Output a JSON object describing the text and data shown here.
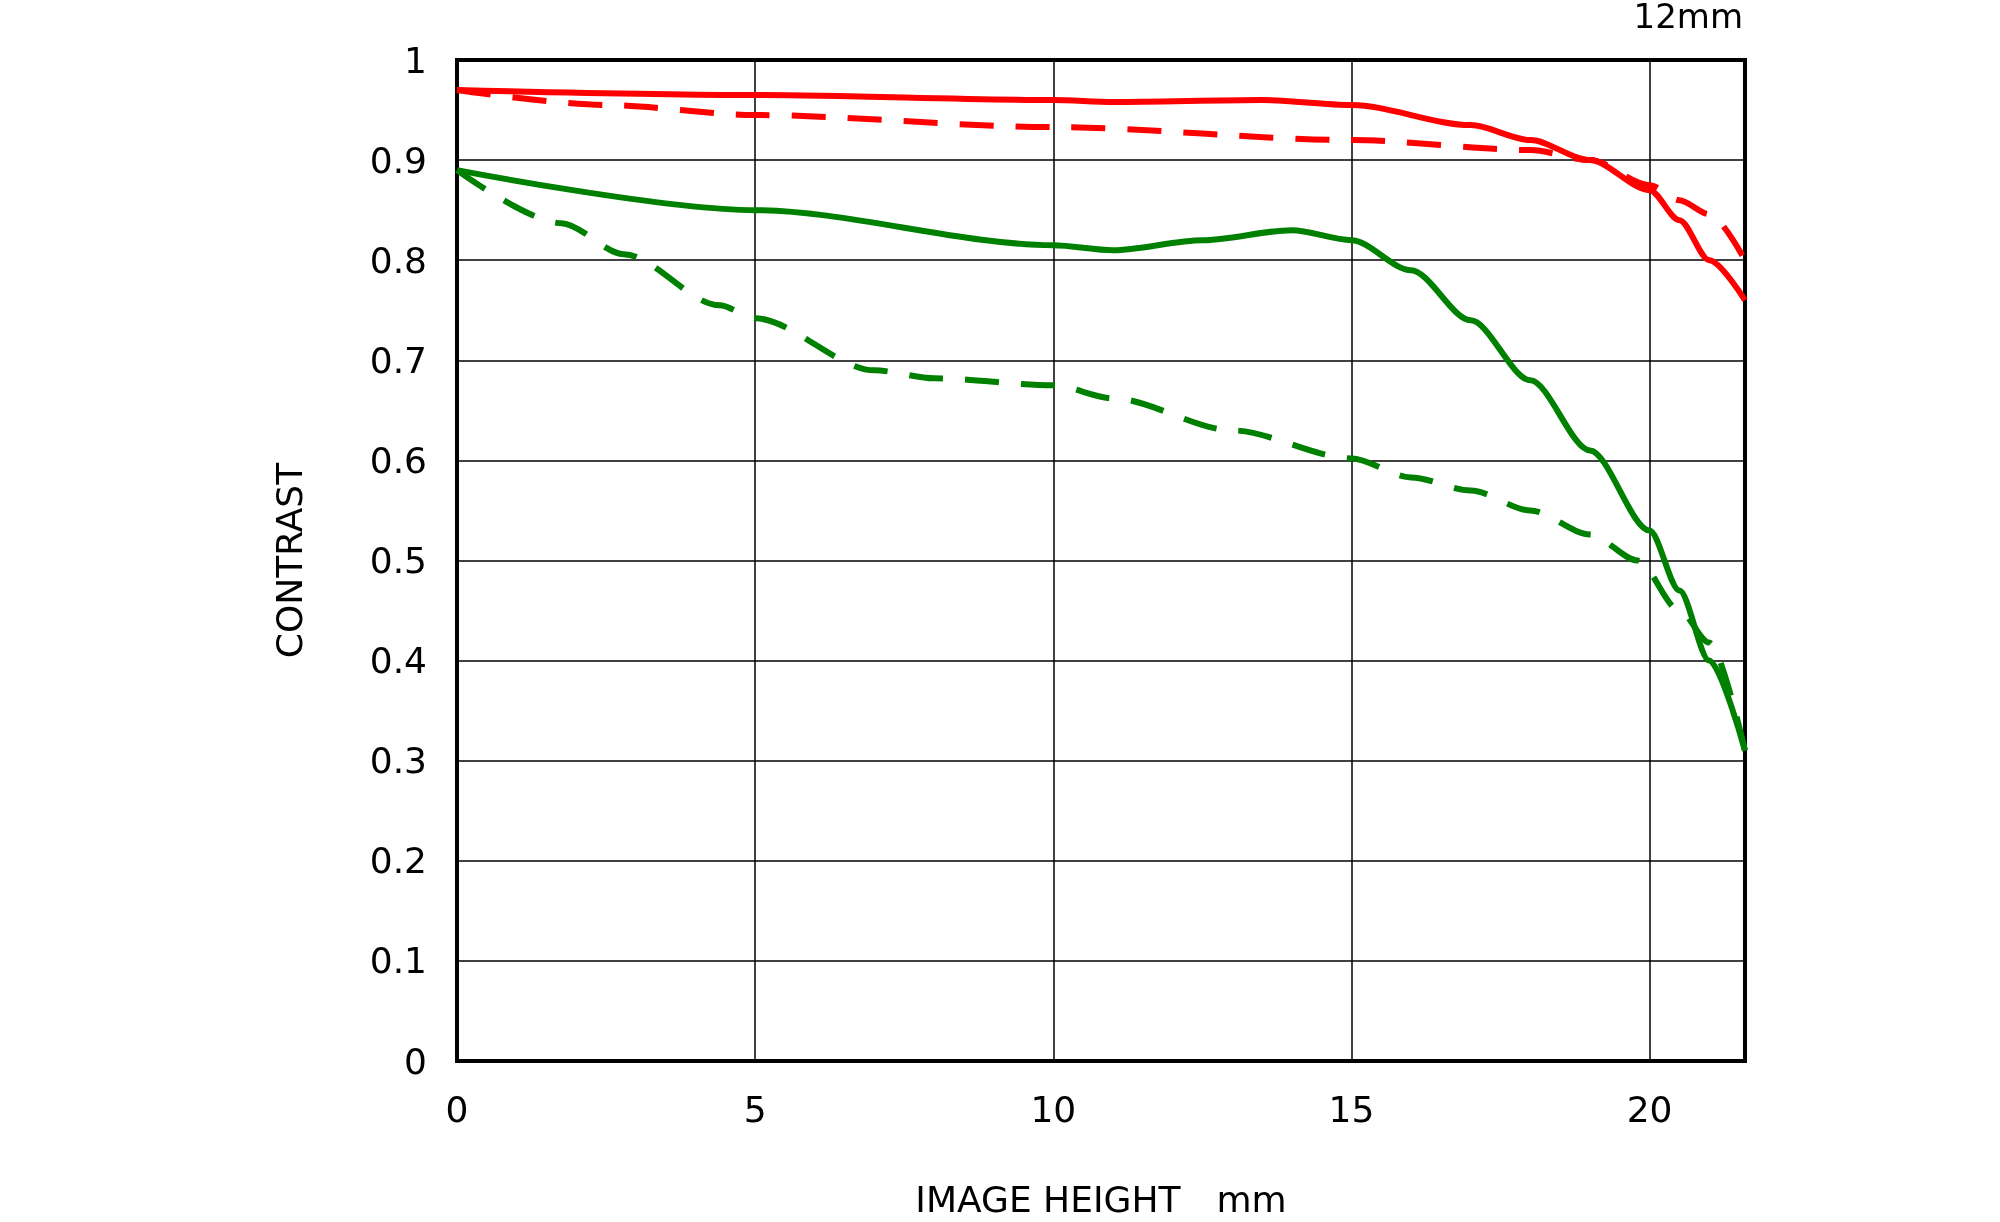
{
  "chart_data": {
    "type": "line",
    "title": "12mm",
    "xlabel": "IMAGE HEIGHT　mm",
    "ylabel": "CONTRAST",
    "xlim": [
      0,
      21.6
    ],
    "xticks": [
      0,
      5,
      10,
      15,
      20
    ],
    "ylim": [
      0,
      1
    ],
    "yticks": [
      0,
      0.1,
      0.2,
      0.3,
      0.4,
      0.5,
      0.6,
      0.7,
      0.8,
      0.9,
      1
    ],
    "grid": true,
    "marker": "none",
    "series": [
      {
        "color": "#ff0000",
        "line_style": "solid",
        "x": [
          0,
          5,
          10,
          11,
          13.5,
          15,
          17,
          18,
          19,
          20,
          20.5,
          21,
          21.6
        ],
        "values": [
          0.97,
          0.965,
          0.96,
          0.958,
          0.96,
          0.955,
          0.935,
          0.92,
          0.9,
          0.87,
          0.84,
          0.8,
          0.76
        ]
      },
      {
        "color": "#ff0000",
        "line_style": "dashed",
        "x": [
          0,
          2.5,
          5,
          10,
          15,
          18,
          19,
          20,
          20.5,
          21,
          21.6
        ],
        "values": [
          0.97,
          0.955,
          0.945,
          0.933,
          0.92,
          0.91,
          0.9,
          0.875,
          0.86,
          0.846,
          0.8
        ]
      },
      {
        "color": "#008000",
        "line_style": "solid",
        "x": [
          0,
          5,
          10,
          11,
          12.5,
          14,
          15,
          16,
          17,
          18,
          19,
          20,
          20.5,
          21,
          21.6
        ],
        "values": [
          0.89,
          0.85,
          0.815,
          0.81,
          0.82,
          0.83,
          0.82,
          0.79,
          0.74,
          0.68,
          0.61,
          0.53,
          0.47,
          0.4,
          0.31
        ]
      },
      {
        "color": "#008000",
        "line_style": "dashed",
        "x": [
          0,
          1.75,
          2.8,
          4.4,
          5,
          7,
          8,
          10,
          11,
          13,
          15,
          16,
          17,
          18,
          19,
          19.8,
          20.5,
          21,
          21.6
        ],
        "values": [
          0.89,
          0.837,
          0.806,
          0.755,
          0.742,
          0.69,
          0.682,
          0.675,
          0.662,
          0.63,
          0.602,
          0.583,
          0.57,
          0.55,
          0.526,
          0.5,
          0.45,
          0.418,
          0.31
        ]
      }
    ]
  }
}
